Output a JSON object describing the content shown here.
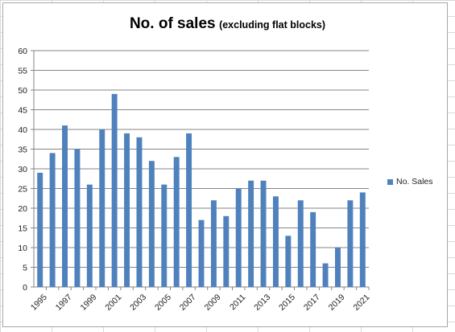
{
  "chart_data": {
    "type": "bar",
    "title": "No. of sales",
    "subtitle": "(excluding flat blocks)",
    "xlabel": "",
    "ylabel": "",
    "ylim": [
      0,
      60
    ],
    "yticks": [
      0,
      5,
      10,
      15,
      20,
      25,
      30,
      35,
      40,
      45,
      50,
      55,
      60
    ],
    "grid": true,
    "legend_position": "right",
    "categories": [
      "1995",
      "1996",
      "1997",
      "1998",
      "1999",
      "2000",
      "2001",
      "2002",
      "2003",
      "2004",
      "2005",
      "2006",
      "2007",
      "2008",
      "2009",
      "2010",
      "2011",
      "2012",
      "2013",
      "2014",
      "2015",
      "2016",
      "2017",
      "2018",
      "2019",
      "2020",
      "2021"
    ],
    "x_tick_labels": [
      "1995",
      "1997",
      "1999",
      "2001",
      "2003",
      "2005",
      "2007",
      "2009",
      "2011",
      "2013",
      "2015",
      "2017",
      "2019",
      "2021"
    ],
    "series": [
      {
        "name": "No. Sales",
        "color": "#4f81bd",
        "values": [
          29,
          34,
          41,
          35,
          26,
          40,
          49,
          39,
          38,
          32,
          26,
          33,
          39,
          17,
          22,
          18,
          25,
          27,
          27,
          23,
          13,
          22,
          19,
          6,
          10,
          22,
          24
        ]
      }
    ]
  }
}
